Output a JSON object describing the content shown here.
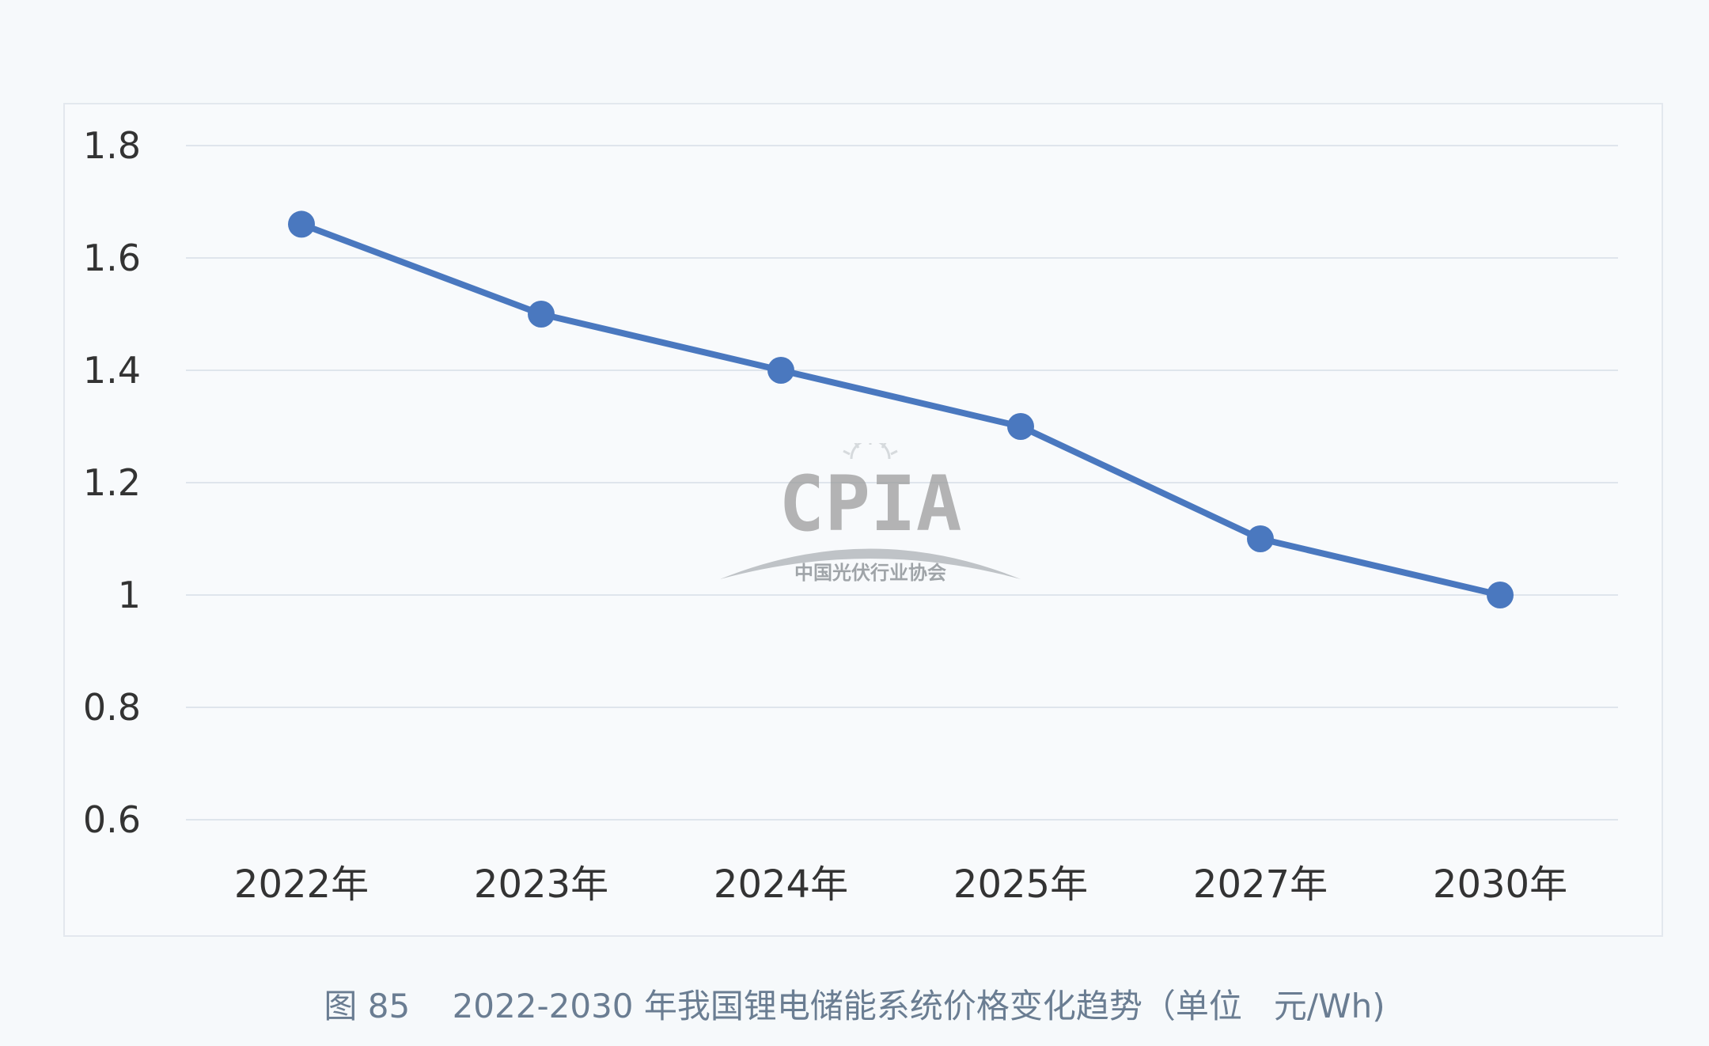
{
  "chart_data": {
    "type": "line",
    "categories": [
      "2022年",
      "2023年",
      "2024年",
      "2025年",
      "2027年",
      "2030年"
    ],
    "series": [
      {
        "values": [
          1.66,
          1.5,
          1.4,
          1.3,
          1.1,
          1.0
        ]
      }
    ],
    "title": "",
    "xlabel": "",
    "ylabel": "",
    "ylim": [
      0.6,
      1.8
    ],
    "yticks": [
      0.6,
      0.8,
      1,
      1.2,
      1.4,
      1.6,
      1.8
    ],
    "ytick_labels": [
      "0.6",
      "0.8",
      "1",
      "1.2",
      "1.4",
      "1.6",
      "1.8"
    ],
    "grid": true,
    "legend": "none",
    "line_color": "#4a78bf",
    "grid_color": "#dfe5ec"
  },
  "caption": {
    "figure_number": "图 85",
    "text": "2022-2030 年我国锂电储能系统价格变化趋势（单位   元/Wh)"
  },
  "watermark": {
    "brand": "CPIA",
    "org_name": "中国光伏行业协会"
  }
}
